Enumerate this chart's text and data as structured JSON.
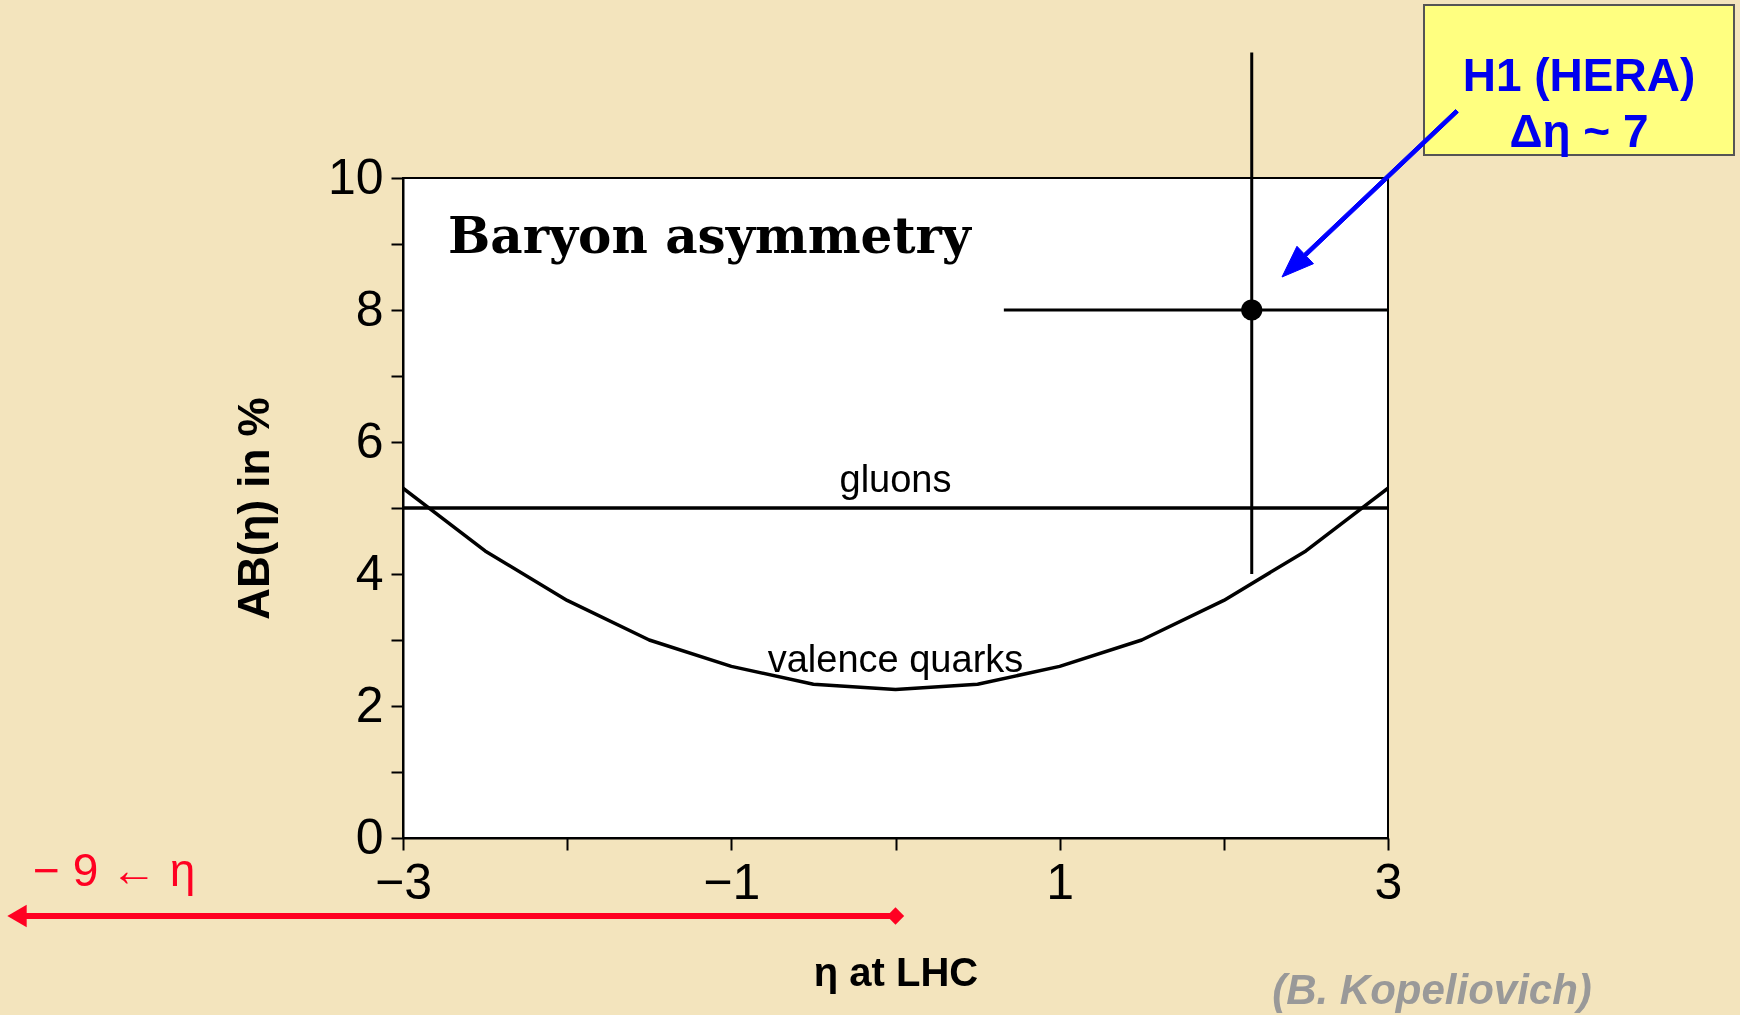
{
  "chart_data": {
    "type": "line",
    "title": "Baryon asymmetry",
    "xlabel": "η  at LHC",
    "ylabel": "AB(η)   in %",
    "xlim": [
      -3,
      3
    ],
    "ylim": [
      0,
      10
    ],
    "xticks": [
      -3,
      {
        "value": -2,
        "label": null
      },
      -1,
      {
        "value": 0,
        "label": null
      },
      1,
      {
        "value": 2,
        "label": null
      },
      3
    ],
    "yticks": [
      0,
      {
        "value": 1,
        "label": null
      },
      2,
      {
        "value": 3,
        "label": null
      },
      4,
      {
        "value": 5,
        "label": null
      },
      6,
      {
        "value": 7,
        "label": null
      },
      8,
      {
        "value": 9,
        "label": null
      },
      10
    ],
    "grid": false,
    "line_style": "solid",
    "series": [
      {
        "name": "gluons",
        "color": "#000000",
        "x": [
          -3,
          3
        ],
        "values": [
          5.0,
          5.0
        ]
      },
      {
        "name": "valence  quarks",
        "color": "#000000",
        "x": [
          -3,
          -2.5,
          -2,
          -1.5,
          -1,
          -0.5,
          0,
          0.5,
          1,
          1.5,
          2,
          2.5,
          3
        ],
        "values": [
          5.3,
          4.35,
          3.6,
          3.0,
          2.6,
          2.33,
          2.25,
          2.33,
          2.6,
          3.0,
          3.6,
          4.35,
          5.3
        ]
      },
      {
        "type": "scatter",
        "color": "#000000",
        "marker": "circle",
        "x": [
          2.17
        ],
        "values": [
          8.0
        ],
        "errors": [
          [
            4.0,
            11.9
          ]
        ],
        "xerrors": [
          [
            0.66,
            3.0
          ]
        ]
      }
    ],
    "annotations": [
      "H1 (HERA)\nΔη ~ 7",
      "− 9 ← η",
      "(B. Kopeliovich)"
    ]
  }
}
